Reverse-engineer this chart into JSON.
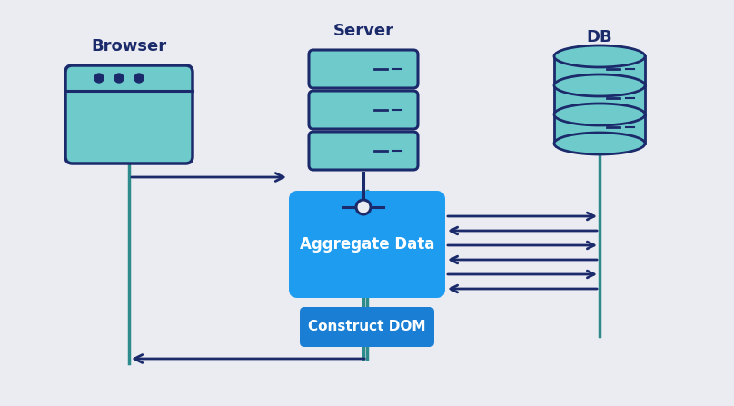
{
  "bg_color": "#eaecf2",
  "dark_blue": "#1b2a6b",
  "teal_fill": "#6ecacb",
  "blue_box": "#1e9cf0",
  "blue_box2": "#1a7fd4",
  "teal_line": "#2e8b8b",
  "title_browser": "Browser",
  "title_server": "Server",
  "title_db": "DB",
  "label_aggregate": "Aggregate Data",
  "label_dom": "Construct DOM"
}
